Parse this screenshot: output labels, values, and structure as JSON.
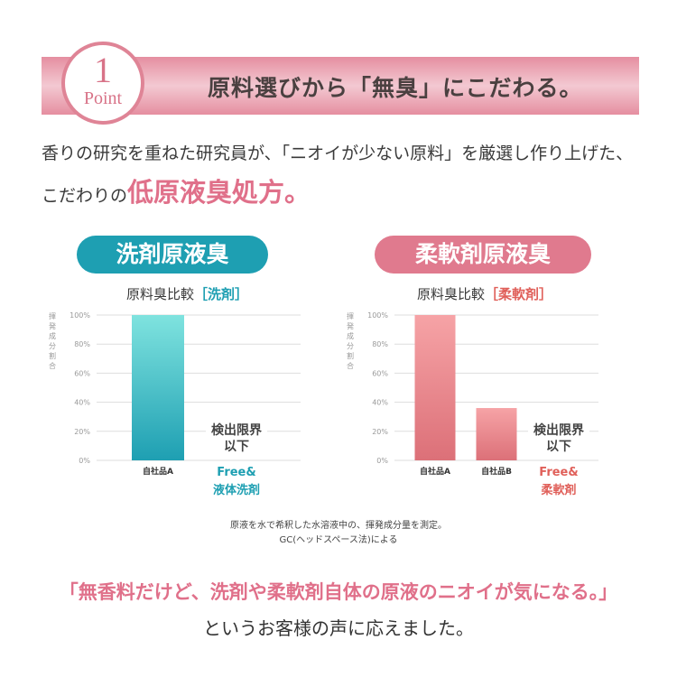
{
  "header": {
    "point_number": "1",
    "point_label": "Point",
    "title": "原料選びから「無臭」にこだわる。"
  },
  "lead": {
    "line1": "香りの研究を重ねた研究員が、「ニオイが少ない原料」を厳選し作り上げた、",
    "line2_prefix": "こだわりの",
    "line2_emphasis": "低原液臭処方。"
  },
  "colors": {
    "teal": "#1e9fb2",
    "pink": "#e07a8e",
    "banner": "#e58ea0"
  },
  "chart_data": [
    {
      "type": "bar",
      "title": "洗剤原液臭",
      "subtitle": "原料臭比較",
      "subtitle_tag": "［洗剤］",
      "ylabel": "揮発成分割合",
      "ylim": [
        0,
        100
      ],
      "yticks": [
        "0%",
        "20%",
        "40%",
        "60%",
        "80%",
        "100%"
      ],
      "categories": [
        "自社品A",
        "Free&\n液体洗剤"
      ],
      "values": [
        100,
        0
      ],
      "annotation": "検出限界\n以下",
      "highlight_label_line1": "Free&",
      "highlight_label_line2": "液体洗剤"
    },
    {
      "type": "bar",
      "title": "柔軟剤原液臭",
      "subtitle": "原料臭比較",
      "subtitle_tag": "［柔軟剤］",
      "ylabel": "揮発成分割合",
      "ylim": [
        0,
        100
      ],
      "yticks": [
        "0%",
        "20%",
        "40%",
        "60%",
        "80%",
        "100%"
      ],
      "categories": [
        "自社品A",
        "自社品B",
        "Free&\n柔軟剤"
      ],
      "values": [
        100,
        36,
        0
      ],
      "annotation": "検出限界\n以下",
      "highlight_label_line1": "Free&",
      "highlight_label_line2": "柔軟剤"
    }
  ],
  "note": {
    "line1": "原液を水で希釈した水溶液中の、揮発成分量を測定。",
    "line2": "GC(ヘッドスペース法)による"
  },
  "footer": {
    "quote": "「無香料だけど、洗剤や柔軟剤自体の原液のニオイが気になる。」",
    "closing": "というお客様の声に応えました。"
  }
}
